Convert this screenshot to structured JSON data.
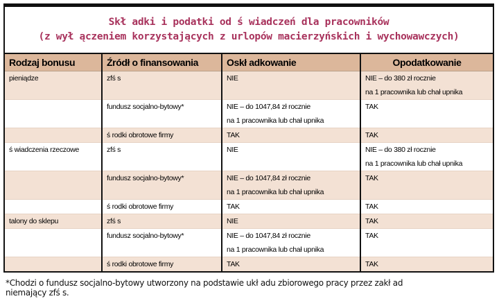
{
  "title": {
    "line1": "Skł adki i podatki od ś wiadczeń dla pracowników",
    "line2": "(z wył ączeniem korzystających z urlopów macierzyńskich i wychowawczych)"
  },
  "headers": [
    "Rodzaj bonusu",
    "Źródł o finansowania",
    "Oskł adkowanie",
    "Opodatkowanie"
  ],
  "rows": [
    {
      "type": "pieniądze",
      "source": "zfś s",
      "contrib": [
        "NIE"
      ],
      "tax": [
        "NIE – do 380 zł  rocznie",
        "na 1 pracownika lub chał  upnika"
      ]
    },
    {
      "type": "",
      "source": "fundusz socjalno-bytowy*",
      "contrib": [
        "NIE – do 1047,84 zł  rocznie",
        "na 1 pracownika lub chał  upnika"
      ],
      "tax": [
        "TAK"
      ]
    },
    {
      "type": "",
      "source": "ś rodki obrotowe firmy",
      "contrib": [
        "TAK"
      ],
      "tax": [
        "TAK"
      ]
    },
    {
      "type": "ś wiadczenia rzeczowe",
      "source": "zfś s",
      "contrib": [
        "NIE"
      ],
      "tax": [
        "NIE – do 380 zł  rocznie",
        "na 1 pracownika lub chał  upnika"
      ]
    },
    {
      "type": "",
      "source": "fundusz socjalno-bytowy*",
      "contrib": [
        "NIE – do 1047,84 zł  rocznie",
        "na 1 pracownika lub chał  upnika"
      ],
      "tax": [
        "TAK"
      ]
    },
    {
      "type": "",
      "source": "ś rodki obrotowe firmy",
      "contrib": [
        "TAK"
      ],
      "tax": [
        "TAK"
      ]
    },
    {
      "type": "talony do sklepu",
      "source": "zfś s",
      "contrib": [
        "NIE"
      ],
      "tax": [
        "TAK"
      ]
    },
    {
      "type": "",
      "source": "fundusz socjalno-bytowy*",
      "contrib": [
        "NIE – do 1047,84 zł  rocznie",
        "na 1 pracownika lub chał  upnika"
      ],
      "tax": [
        "TAK"
      ]
    },
    {
      "type": "",
      "source": "ś rodki obrotowe firmy",
      "contrib": [
        "TAK"
      ],
      "tax": [
        "TAK"
      ]
    }
  ],
  "footnote": {
    "line1": "*Chodzi o fundusz socjalno-bytowy utworzony na podstawie ukł adu zbiorowego pracy przez zakł ad",
    "line2": "niemający zfś s."
  },
  "colors": {
    "title": "#a8325c",
    "header": "#dcb79b",
    "shaded_row": "#f3e1d4"
  }
}
